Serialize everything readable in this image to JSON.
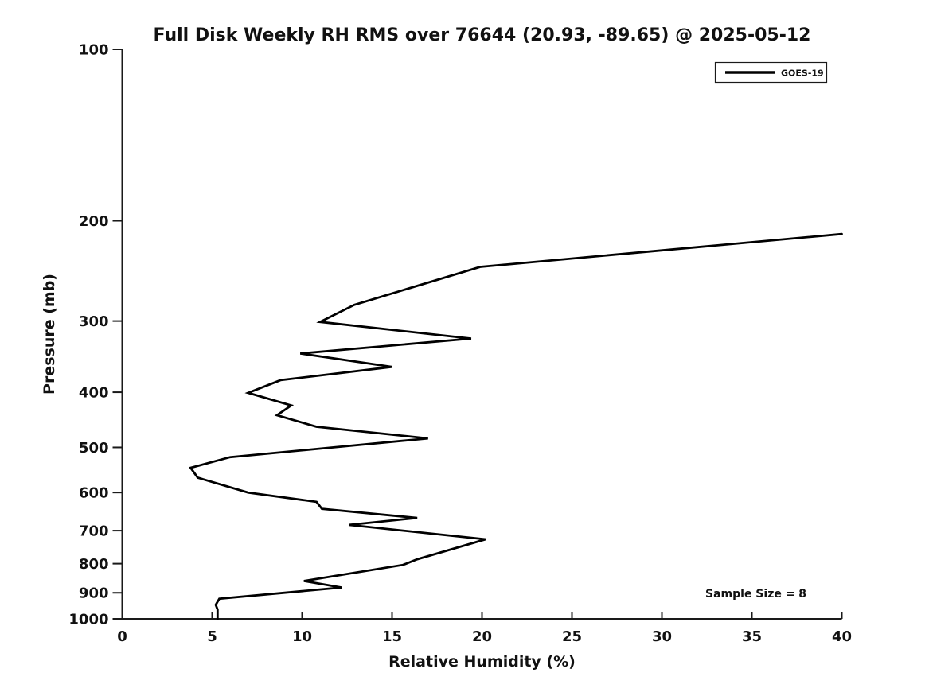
{
  "colors": {
    "line": "#000000",
    "axis": "#1a1a1a",
    "text": "#111111",
    "background": "#ffffff"
  },
  "chart_data": {
    "type": "line",
    "title": "Full Disk Weekly RH RMS over 76644 (20.93, -89.65) @ 2025-05-12",
    "xlabel": "Relative Humidity (%)",
    "ylabel": "Pressure (mb)",
    "xlim": [
      0,
      40
    ],
    "ylim": [
      100,
      1000
    ],
    "y_scale": "log",
    "y_inverted": true,
    "grid": false,
    "x_ticks": [
      0,
      5,
      10,
      15,
      20,
      25,
      30,
      35,
      40
    ],
    "y_ticks": [
      100,
      200,
      300,
      400,
      500,
      600,
      700,
      800,
      900,
      1000
    ],
    "legend": {
      "position": "top-right",
      "entries": [
        {
          "label": "GOES-19",
          "color": "#000000",
          "line_width": 3.5
        }
      ]
    },
    "annotations": [
      {
        "text": "Sample Size = 8",
        "position": "lower-right"
      }
    ],
    "series": [
      {
        "name": "GOES-19",
        "color": "#000000",
        "line_width": 2.8,
        "points": [
          {
            "rh": 40.0,
            "p": 211
          },
          {
            "rh": 19.9,
            "p": 241
          },
          {
            "rh": 12.9,
            "p": 281
          },
          {
            "rh": 11.0,
            "p": 301
          },
          {
            "rh": 19.4,
            "p": 322
          },
          {
            "rh": 9.9,
            "p": 342
          },
          {
            "rh": 15.0,
            "p": 361
          },
          {
            "rh": 8.8,
            "p": 381
          },
          {
            "rh": 7.0,
            "p": 401
          },
          {
            "rh": 9.4,
            "p": 422
          },
          {
            "rh": 8.6,
            "p": 439
          },
          {
            "rh": 10.8,
            "p": 460
          },
          {
            "rh": 17.0,
            "p": 482
          },
          {
            "rh": 6.0,
            "p": 520
          },
          {
            "rh": 3.8,
            "p": 543
          },
          {
            "rh": 4.2,
            "p": 565
          },
          {
            "rh": 7.0,
            "p": 600
          },
          {
            "rh": 10.8,
            "p": 623
          },
          {
            "rh": 11.1,
            "p": 641
          },
          {
            "rh": 16.4,
            "p": 665
          },
          {
            "rh": 12.6,
            "p": 684
          },
          {
            "rh": 20.2,
            "p": 725
          },
          {
            "rh": 16.4,
            "p": 786
          },
          {
            "rh": 15.6,
            "p": 804
          },
          {
            "rh": 10.1,
            "p": 858
          },
          {
            "rh": 12.2,
            "p": 881
          },
          {
            "rh": 5.4,
            "p": 922
          },
          {
            "rh": 5.2,
            "p": 945
          },
          {
            "rh": 5.3,
            "p": 963
          },
          {
            "rh": 5.3,
            "p": 1000
          }
        ]
      }
    ]
  }
}
